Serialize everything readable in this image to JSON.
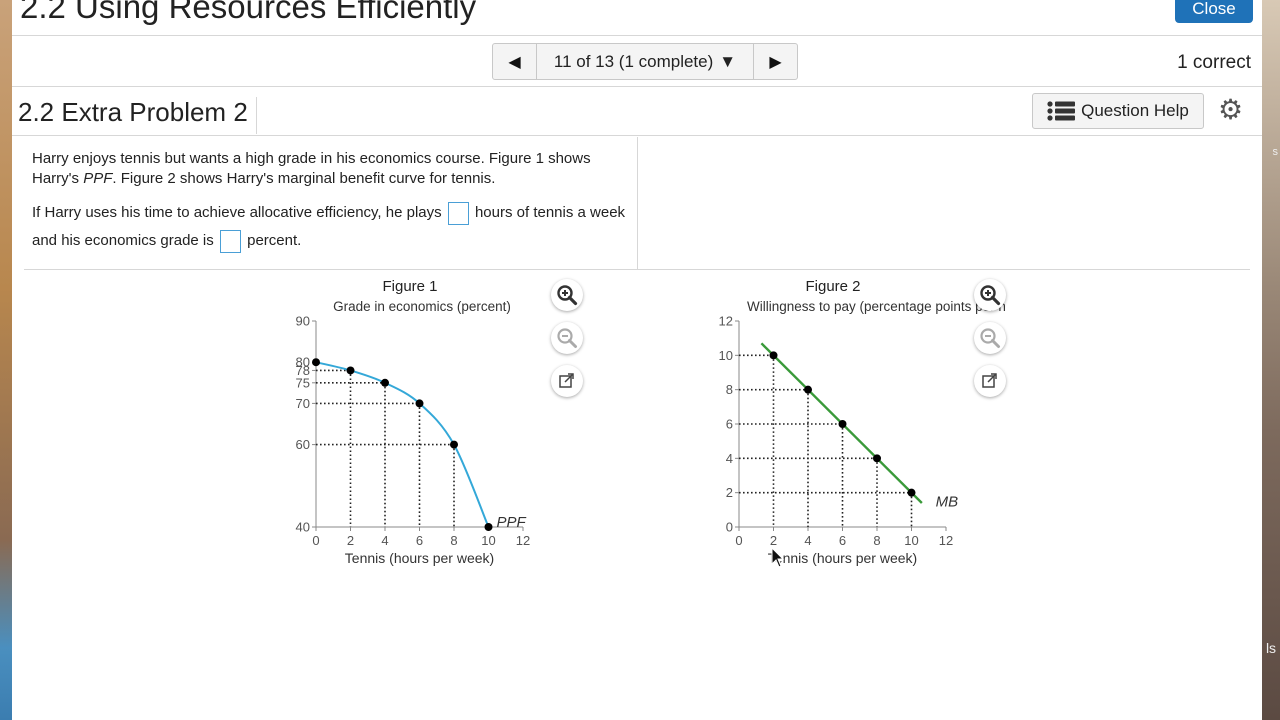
{
  "window": {
    "title": "2.2 Using Resources Efficiently",
    "close_label": "Close"
  },
  "navigator": {
    "position": "11 of 13 (1 complete)",
    "score": "1 correct"
  },
  "problem": {
    "title": "2.2 Extra Problem 2",
    "help_label": "Question Help"
  },
  "question": {
    "p1_a": "Harry enjoys tennis but wants a high grade in his economics course. Figure 1 shows Harry's ",
    "p1_em": "PPF",
    "p1_b": ". Figure 2 shows Harry's marginal benefit curve for tennis.",
    "p2_a": "If Harry uses his time to achieve allocative efficiency, he plays ",
    "p2_b": " hours of tennis a week and his economics grade is ",
    "p2_c": " percent.",
    "answer_hours": "",
    "answer_grade": ""
  },
  "colors": {
    "ppf_curve": "#34a8d8",
    "mb_line": "#3a9a3a",
    "accent": "#1f72b8"
  },
  "chart_data": [
    {
      "type": "line",
      "title": "Figure 1",
      "ylabel": "Grade in economics (percent)",
      "xlabel": "Tennis (hours per week)",
      "curve_label": "PPF",
      "x_ticks": [
        0,
        2,
        4,
        6,
        8,
        10,
        12
      ],
      "y_ticks": [
        40,
        60,
        70,
        75,
        78,
        80,
        90
      ],
      "xlim": [
        0,
        12
      ],
      "ylim": [
        40,
        90
      ],
      "points": [
        {
          "x": 0,
          "y": 80
        },
        {
          "x": 2,
          "y": 78
        },
        {
          "x": 4,
          "y": 75
        },
        {
          "x": 6,
          "y": 70
        },
        {
          "x": 8,
          "y": 60
        },
        {
          "x": 10,
          "y": 40
        }
      ],
      "grid": "dotted guides from points to axes"
    },
    {
      "type": "line",
      "title": "Figure 2",
      "ylabel": "Willingness to pay (percentage points per h",
      "xlabel": "Tennis (hours per week)",
      "curve_label": "MB",
      "x_ticks": [
        0,
        2,
        4,
        6,
        8,
        10,
        12
      ],
      "y_ticks": [
        0,
        2,
        4,
        6,
        8,
        10,
        12
      ],
      "xlim": [
        0,
        12
      ],
      "ylim": [
        0,
        12
      ],
      "points": [
        {
          "x": 2,
          "y": 10
        },
        {
          "x": 4,
          "y": 8
        },
        {
          "x": 6,
          "y": 6
        },
        {
          "x": 8,
          "y": 4
        },
        {
          "x": 10,
          "y": 2
        }
      ],
      "line_extent": {
        "x_start": 1.3,
        "x_end": 10.6
      },
      "grid": "dotted guides from points to axes"
    }
  ],
  "desktop": {
    "right_edge_text": "ls",
    "right_edge_char": "s"
  }
}
